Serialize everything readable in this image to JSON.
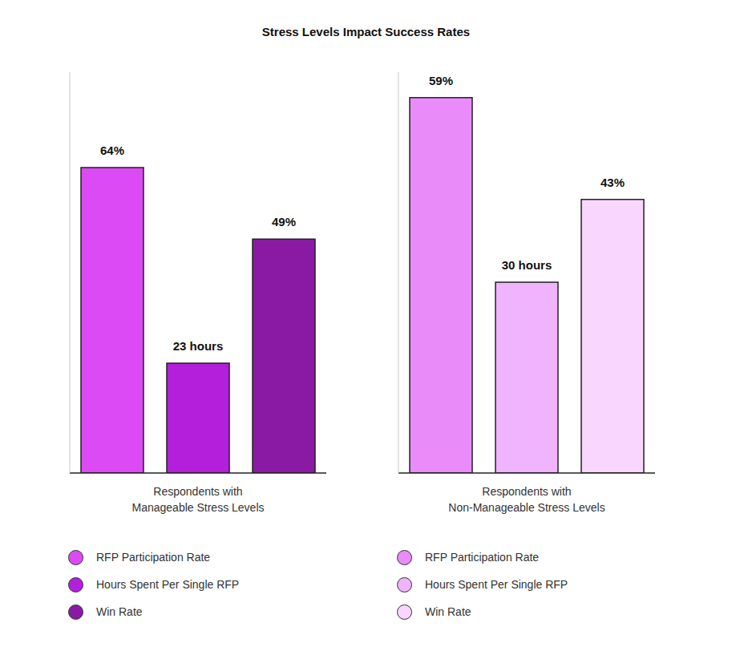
{
  "title": "Stress Levels Impact Success Rates",
  "chart_data": [
    {
      "type": "bar",
      "categories": [
        "Respondents with\nManageable Stress Levels"
      ],
      "series": [
        {
          "name": "RFP Participation Rate",
          "color": "#dc4af5",
          "values": [
            64
          ],
          "value_labels": [
            "64%"
          ]
        },
        {
          "name": "Hours Spent Per Single RFP",
          "color": "#b41fdc",
          "values": [
            23
          ],
          "value_labels": [
            "23 hours"
          ]
        },
        {
          "name": "Win Rate",
          "color": "#8a1aa3",
          "values": [
            49
          ],
          "value_labels": [
            "49%"
          ]
        }
      ],
      "ylim": [
        0,
        84
      ],
      "tick_labels": "x",
      "data_labels": true,
      "legend": "bottom"
    },
    {
      "type": "bar",
      "categories": [
        "Respondents with\nNon-Manageable Stress Levels"
      ],
      "series": [
        {
          "name": "RFP Participation Rate",
          "color": "#e98bf9",
          "values": [
            59
          ],
          "value_labels": [
            "59%"
          ]
        },
        {
          "name": "Hours Spent Per Single RFP",
          "color": "#f0b3fd",
          "values": [
            30
          ],
          "value_labels": [
            "30 hours"
          ]
        },
        {
          "name": "Win Rate",
          "color": "#f8d6fd",
          "values": [
            43
          ],
          "value_labels": [
            "43%"
          ]
        }
      ],
      "ylim": [
        0,
        63
      ],
      "tick_labels": "x",
      "data_labels": true,
      "legend": "bottom"
    }
  ]
}
